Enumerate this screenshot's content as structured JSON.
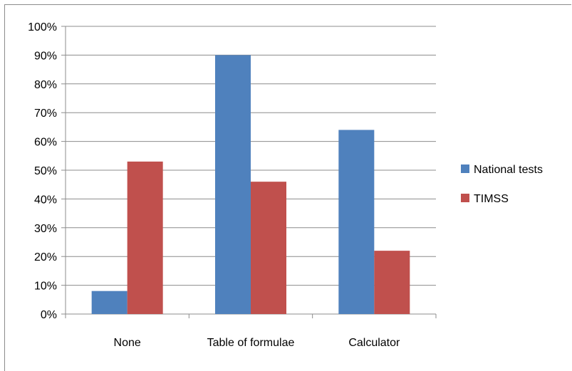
{
  "chart_data": {
    "type": "bar",
    "title": "",
    "xlabel": "",
    "ylabel": "",
    "categories": [
      "None",
      "Table of formulae",
      "Calculator"
    ],
    "series": [
      {
        "name": "National tests",
        "values": [
          8,
          90,
          64
        ],
        "color": "#4f81bd"
      },
      {
        "name": "TIMSS",
        "values": [
          53,
          46,
          22
        ],
        "color": "#c0504d"
      }
    ],
    "ylim": [
      0,
      100
    ],
    "yticks": [
      0,
      10,
      20,
      30,
      40,
      50,
      60,
      70,
      80,
      90,
      100
    ],
    "ytick_labels": [
      "0%",
      "10%",
      "20%",
      "30%",
      "40%",
      "50%",
      "60%",
      "70%",
      "80%",
      "90%",
      "100%"
    ],
    "grid": true,
    "legend_position": "right"
  }
}
